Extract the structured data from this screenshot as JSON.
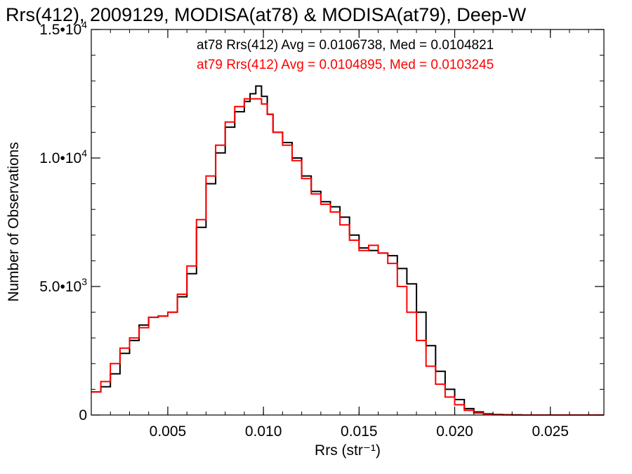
{
  "chart_data": {
    "type": "line",
    "step": true,
    "title": "Rrs(412), 2009129, MODISA(at78) & MODISA(at79), Deep-W",
    "xlabel": "Rrs (str⁻¹)",
    "ylabel": "Number of Observations",
    "xlim": [
      0.001,
      0.0278
    ],
    "ylim": [
      0,
      15000
    ],
    "x_ticks": [
      {
        "value": 0.005,
        "label": "0.005"
      },
      {
        "value": 0.01,
        "label": "0.010"
      },
      {
        "value": 0.015,
        "label": "0.015"
      },
      {
        "value": 0.02,
        "label": "0.020"
      },
      {
        "value": 0.025,
        "label": "0.025"
      }
    ],
    "y_ticks": [
      {
        "value": 0,
        "mant": "0",
        "exp": ""
      },
      {
        "value": 5000,
        "mant": "5.0•10",
        "exp": "3"
      },
      {
        "value": 10000,
        "mant": "1.0•10",
        "exp": "4"
      },
      {
        "value": 15000,
        "mant": "1.5•10",
        "exp": "4"
      }
    ],
    "x_minor_step": 0.001,
    "y_minor_step": 1000,
    "grid": false,
    "legend": [
      {
        "text": "at78 Rrs(412) Avg = 0.0106738, Med = 0.0104821",
        "color": "#000000"
      },
      {
        "text": "at79 Rrs(412) Avg = 0.0104895, Med = 0.0103245",
        "color": "#ff0000"
      }
    ],
    "series": [
      {
        "color": "#000000",
        "x": [
          0.001,
          0.0015,
          0.002,
          0.0025,
          0.003,
          0.0035,
          0.004,
          0.0045,
          0.005,
          0.0055,
          0.006,
          0.0065,
          0.007,
          0.0075,
          0.008,
          0.0085,
          0.009,
          0.0093,
          0.0096,
          0.0099,
          0.0102,
          0.0105,
          0.011,
          0.0115,
          0.012,
          0.0125,
          0.013,
          0.0135,
          0.014,
          0.0145,
          0.015,
          0.0155,
          0.016,
          0.0165,
          0.017,
          0.0175,
          0.018,
          0.0185,
          0.019,
          0.0195,
          0.02,
          0.0205,
          0.021,
          0.0215,
          0.022,
          0.0225,
          0.023,
          0.0235,
          0.024,
          0.025,
          0.026,
          0.027,
          0.0278
        ],
        "y": [
          900,
          1100,
          1600,
          2400,
          2900,
          3500,
          3800,
          3850,
          4000,
          4600,
          5500,
          7300,
          9000,
          10200,
          11200,
          11800,
          12200,
          12500,
          12800,
          12400,
          11700,
          11000,
          10600,
          10000,
          9300,
          8700,
          8300,
          8100,
          7700,
          7000,
          6500,
          6400,
          6300,
          6200,
          5700,
          5100,
          4000,
          2700,
          1700,
          1000,
          600,
          250,
          120,
          50,
          20,
          10,
          5,
          0,
          0,
          0,
          0,
          0,
          0
        ]
      },
      {
        "color": "#ff0000",
        "x": [
          0.001,
          0.0015,
          0.002,
          0.0025,
          0.003,
          0.0035,
          0.004,
          0.0045,
          0.005,
          0.0055,
          0.006,
          0.0065,
          0.007,
          0.0075,
          0.008,
          0.0085,
          0.009,
          0.0093,
          0.0096,
          0.0099,
          0.0102,
          0.0105,
          0.011,
          0.0115,
          0.012,
          0.0125,
          0.013,
          0.0135,
          0.014,
          0.0145,
          0.015,
          0.0155,
          0.016,
          0.0165,
          0.017,
          0.0175,
          0.018,
          0.0185,
          0.019,
          0.0195,
          0.02,
          0.0205,
          0.021,
          0.0215,
          0.022,
          0.0225,
          0.023,
          0.0235,
          0.024,
          0.025,
          0.026,
          0.027,
          0.0278
        ],
        "y": [
          900,
          1300,
          2000,
          2600,
          3000,
          3400,
          3800,
          3850,
          4000,
          4700,
          5800,
          7600,
          9300,
          10500,
          11400,
          12000,
          12300,
          12300,
          12300,
          12100,
          11700,
          11000,
          10500,
          9900,
          9200,
          8600,
          8200,
          7900,
          7400,
          6800,
          6400,
          6600,
          6300,
          5900,
          5000,
          4000,
          2900,
          1900,
          1200,
          700,
          400,
          180,
          80,
          30,
          10,
          5,
          0,
          0,
          0,
          0,
          0,
          0,
          0
        ]
      }
    ]
  }
}
